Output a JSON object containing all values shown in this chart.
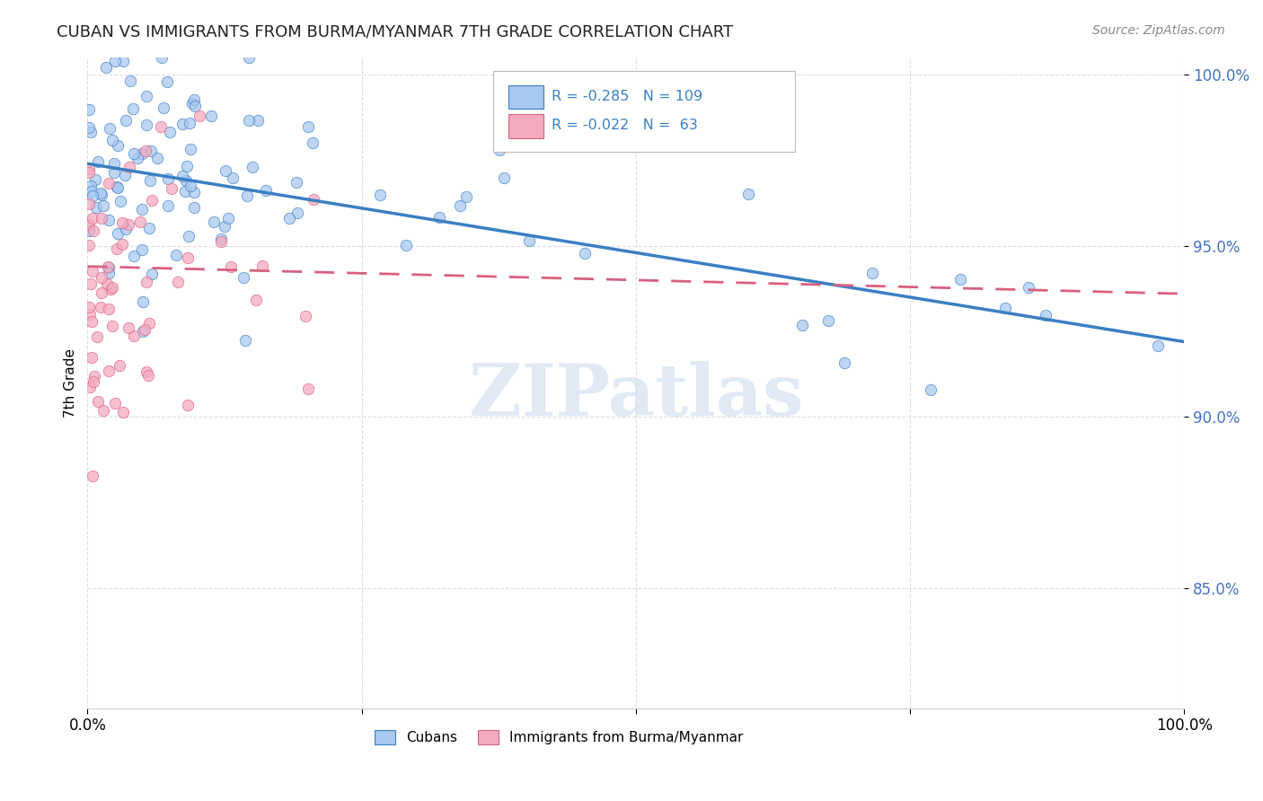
{
  "title": "CUBAN VS IMMIGRANTS FROM BURMA/MYANMAR 7TH GRADE CORRELATION CHART",
  "source": "Source: ZipAtlas.com",
  "ylabel": "7th Grade",
  "xlim": [
    0.0,
    1.0
  ],
  "ylim": [
    0.815,
    1.005
  ],
  "yticks": [
    0.85,
    0.9,
    0.95,
    1.0
  ],
  "ytick_labels": [
    "85.0%",
    "90.0%",
    "95.0%",
    "100.0%"
  ],
  "blue_color": "#A8C8F0",
  "pink_color": "#F4AABF",
  "blue_line_color": "#3B7FC4",
  "pink_line_color": "#D96080",
  "watermark_text": "ZIPatlas",
  "legend_label_cubans": "Cubans",
  "legend_label_burma": "Immigrants from Burma/Myanmar",
  "blue_R": -0.285,
  "blue_N": 109,
  "pink_R": -0.022,
  "pink_N": 63,
  "blue_intercept": 0.974,
  "blue_slope": -0.052,
  "pink_intercept": 0.944,
  "pink_slope": -0.008,
  "background_color": "#FFFFFF",
  "grid_color": "#DDDDDD",
  "tick_label_color": "#4472C4",
  "title_color": "#222222",
  "source_color": "#888888"
}
